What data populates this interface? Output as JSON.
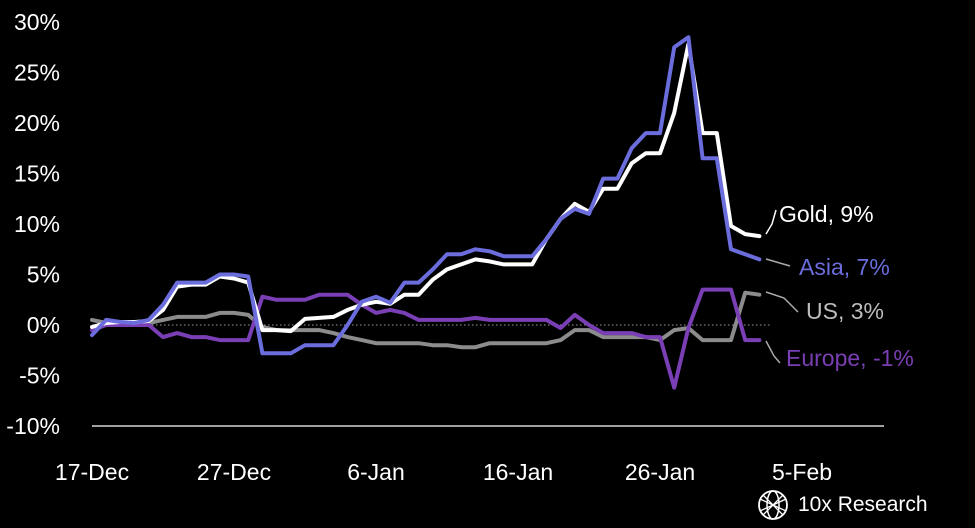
{
  "brand": {
    "name": "10x Research",
    "icon": "globe-icon"
  },
  "chart_data": {
    "type": "line",
    "title": "",
    "xlabel": "",
    "ylabel": "",
    "x_tick_labels": [
      "17-Dec",
      "27-Dec",
      "6-Jan",
      "16-Jan",
      "26-Jan",
      "5-Feb"
    ],
    "x_tick_days": [
      0,
      10,
      20,
      30,
      40,
      50
    ],
    "y_tick_labels": [
      "30%",
      "25%",
      "20%",
      "15%",
      "10%",
      "5%",
      "0%",
      "-5%",
      "-10%"
    ],
    "ylim": [
      -10,
      30
    ],
    "xlim": [
      "17-Dec",
      "6-Feb"
    ],
    "grid": false,
    "zero_line": "dotted",
    "series": [
      {
        "name": "Gold",
        "end_label": "Gold, 9%",
        "color": "#ffffff",
        "x": [
          0,
          1,
          2,
          3,
          4,
          5,
          6,
          7,
          8,
          9,
          10,
          11,
          12,
          13,
          14,
          15,
          16,
          17,
          18,
          19,
          20,
          21,
          22,
          23,
          24,
          25,
          26,
          27,
          28,
          29,
          30,
          31,
          32,
          33,
          34,
          35,
          36,
          37,
          38,
          39,
          40,
          41,
          42,
          43,
          44,
          45,
          46,
          47
        ],
        "values": [
          -0.2,
          0.2,
          0.3,
          0.3,
          0.4,
          1.5,
          3.8,
          4.0,
          4.0,
          4.8,
          4.6,
          4.2,
          -0.5,
          -0.5,
          -0.6,
          0.6,
          0.7,
          0.8,
          1.5,
          2.0,
          2.3,
          2.1,
          3.0,
          3.0,
          4.5,
          5.5,
          6.0,
          6.5,
          6.3,
          6.0,
          6.0,
          6.0,
          8.5,
          10.5,
          12.0,
          11.2,
          13.5,
          13.5,
          16.0,
          17.0,
          17.0,
          21.0,
          27.8,
          19.0,
          19.0,
          9.8,
          9.0,
          8.8
        ]
      },
      {
        "name": "Asia",
        "end_label": "Asia, 7%",
        "color": "#6b6ddd",
        "x": [
          0,
          1,
          2,
          3,
          4,
          5,
          6,
          7,
          8,
          9,
          10,
          11,
          12,
          13,
          14,
          15,
          16,
          17,
          18,
          19,
          20,
          21,
          22,
          23,
          24,
          25,
          26,
          27,
          28,
          29,
          30,
          31,
          32,
          33,
          34,
          35,
          36,
          37,
          38,
          39,
          40,
          41,
          42,
          43,
          44,
          45,
          46,
          47
        ],
        "values": [
          -1.0,
          0.5,
          0.3,
          0.2,
          0.5,
          2.0,
          4.2,
          4.2,
          4.2,
          5.0,
          5.0,
          4.8,
          -2.8,
          -2.8,
          -2.8,
          -2.0,
          -2.0,
          -2.0,
          0.0,
          2.3,
          2.8,
          2.2,
          4.2,
          4.2,
          5.5,
          7.0,
          7.0,
          7.5,
          7.3,
          6.8,
          6.8,
          6.8,
          8.5,
          10.5,
          11.5,
          11.0,
          14.5,
          14.5,
          17.5,
          19.0,
          19.0,
          27.5,
          28.5,
          16.5,
          16.5,
          7.5,
          7.0,
          6.5
        ]
      },
      {
        "name": "US",
        "end_label": "US, 3%",
        "color": "#8c8c8c",
        "x": [
          0,
          1,
          2,
          3,
          4,
          5,
          6,
          7,
          8,
          9,
          10,
          11,
          12,
          13,
          14,
          15,
          16,
          17,
          18,
          19,
          20,
          21,
          22,
          23,
          24,
          25,
          26,
          27,
          28,
          29,
          30,
          31,
          32,
          33,
          34,
          35,
          36,
          37,
          38,
          39,
          40,
          41,
          42,
          43,
          44,
          45,
          46,
          47
        ],
        "values": [
          0.5,
          0.2,
          0.0,
          0.0,
          0.2,
          0.5,
          0.8,
          0.8,
          0.8,
          1.2,
          1.2,
          1.0,
          -0.2,
          -0.5,
          -0.5,
          -0.5,
          -0.5,
          -0.8,
          -1.2,
          -1.5,
          -1.8,
          -1.8,
          -1.8,
          -1.8,
          -2.0,
          -2.0,
          -2.2,
          -2.2,
          -1.8,
          -1.8,
          -1.8,
          -1.8,
          -1.8,
          -1.5,
          -0.5,
          -0.5,
          -1.2,
          -1.2,
          -1.2,
          -1.2,
          -1.5,
          -0.5,
          -0.3,
          -1.5,
          -1.5,
          -1.5,
          3.2,
          3.0
        ]
      },
      {
        "name": "Europe",
        "end_label": "Europe, -1%",
        "color": "#7a3fb4",
        "x": [
          0,
          1,
          2,
          3,
          4,
          5,
          6,
          7,
          8,
          9,
          10,
          11,
          12,
          13,
          14,
          15,
          16,
          17,
          18,
          19,
          20,
          21,
          22,
          23,
          24,
          25,
          26,
          27,
          28,
          29,
          30,
          31,
          32,
          33,
          34,
          35,
          36,
          37,
          38,
          39,
          40,
          41,
          42,
          43,
          44,
          45,
          46,
          47
        ],
        "values": [
          -0.5,
          0.0,
          0.0,
          0.0,
          0.0,
          -1.2,
          -0.8,
          -1.2,
          -1.2,
          -1.5,
          -1.5,
          -1.5,
          2.8,
          2.5,
          2.5,
          2.5,
          3.0,
          3.0,
          3.0,
          2.0,
          1.2,
          1.5,
          1.2,
          0.5,
          0.5,
          0.5,
          0.5,
          0.7,
          0.5,
          0.5,
          0.5,
          0.5,
          0.5,
          -0.3,
          1.0,
          0.0,
          -0.8,
          -0.8,
          -0.8,
          -1.2,
          -1.2,
          -6.2,
          -0.3,
          3.5,
          3.5,
          3.5,
          -1.5,
          -1.5
        ]
      }
    ]
  }
}
